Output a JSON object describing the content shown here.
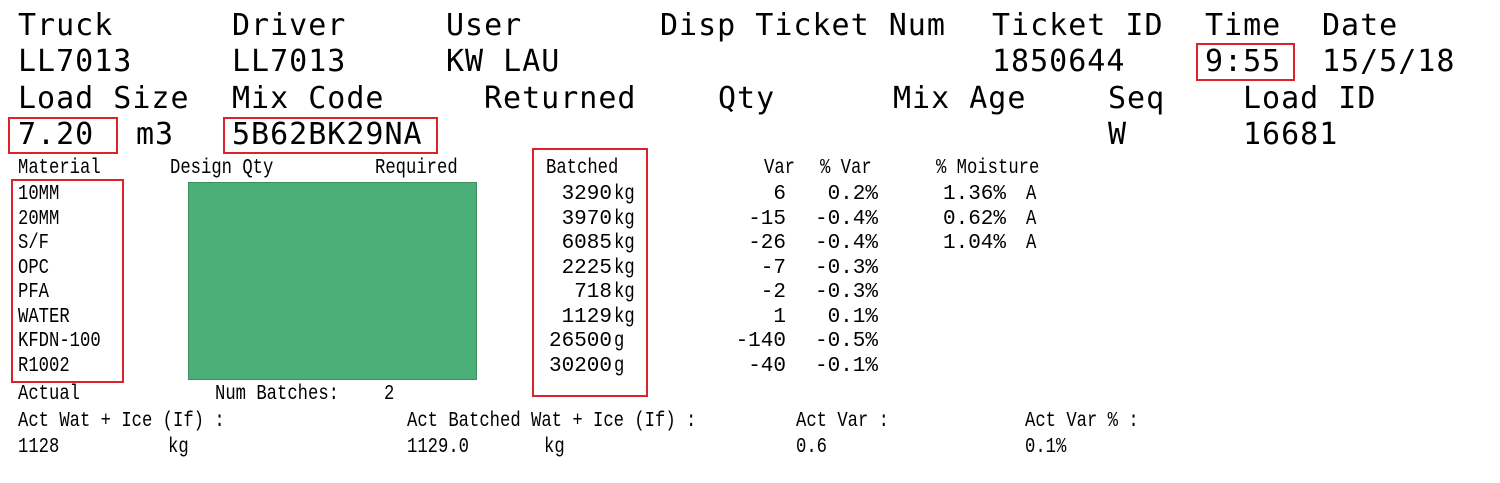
{
  "header": {
    "truck_label": "Truck",
    "truck_value": "LL7013",
    "driver_label": "Driver",
    "driver_value": "LL7013",
    "user_label": "User",
    "user_value": "KW LAU",
    "disp_ticket_label": "Disp Ticket Num",
    "ticket_id_label": "Ticket ID",
    "ticket_id_value": "1850644",
    "time_label": "Time",
    "time_value": "9:55",
    "date_label": "Date",
    "date_value": "15/5/18"
  },
  "load": {
    "load_size_label": "Load Size",
    "load_size_value": "7.20",
    "load_size_unit": "m3",
    "mix_code_label": "Mix Code",
    "mix_code_value": "5B62BK29NA",
    "returned_label": "Returned",
    "qty_label": "Qty",
    "mix_age_label": "Mix Age",
    "seq_label": "Seq",
    "seq_value": "W",
    "load_id_label": "Load ID",
    "load_id_value": "16681"
  },
  "table": {
    "headers": {
      "material": "Material",
      "design_qty": "Design Qty",
      "required": "Required",
      "batched": "Batched",
      "var": "Var",
      "pct_var": "% Var",
      "pct_moisture": "% Moisture"
    },
    "rows": [
      {
        "material": "10MM",
        "batched": "3290",
        "unit": "kg",
        "var": "6",
        "pct_var": "0.2%",
        "moisture": "1.36%",
        "flag": "A"
      },
      {
        "material": "20MM",
        "batched": "3970",
        "unit": "kg",
        "var": "-15",
        "pct_var": "-0.4%",
        "moisture": "0.62%",
        "flag": "A"
      },
      {
        "material": "S/F",
        "batched": "6085",
        "unit": "kg",
        "var": "-26",
        "pct_var": "-0.4%",
        "moisture": "1.04%",
        "flag": "A"
      },
      {
        "material": "OPC",
        "batched": "2225",
        "unit": "kg",
        "var": "-7",
        "pct_var": "-0.3%",
        "moisture": "",
        "flag": ""
      },
      {
        "material": "PFA",
        "batched": "718",
        "unit": "kg",
        "var": "-2",
        "pct_var": "-0.3%",
        "moisture": "",
        "flag": ""
      },
      {
        "material": "WATER",
        "batched": "1129",
        "unit": "kg",
        "var": "1",
        "pct_var": "0.1%",
        "moisture": "",
        "flag": ""
      },
      {
        "material": "KFDN-100",
        "batched": "26500",
        "unit": "g",
        "var": "-140",
        "pct_var": "-0.5%",
        "moisture": "",
        "flag": ""
      },
      {
        "material": "R1002",
        "batched": "30200",
        "unit": "g",
        "var": "-40",
        "pct_var": "-0.1%",
        "moisture": "",
        "flag": ""
      }
    ],
    "actual_label": "Actual",
    "num_batches_label": "Num Batches:",
    "num_batches_value": "2"
  },
  "footer": {
    "act_wat_label": "Act Wat + Ice (If) :",
    "act_wat_value": "1128",
    "act_wat_unit": "kg",
    "act_batched_label": "Act Batched Wat + Ice (If) :",
    "act_batched_value": "1129.0",
    "act_batched_unit": "kg",
    "act_var_label": "Act Var :",
    "act_var_value": "0.6",
    "act_var_pct_label": "Act Var % :",
    "act_var_pct_value": "0.1%"
  },
  "colors": {
    "highlight": "#d9242b",
    "redaction": "#4caf78"
  }
}
